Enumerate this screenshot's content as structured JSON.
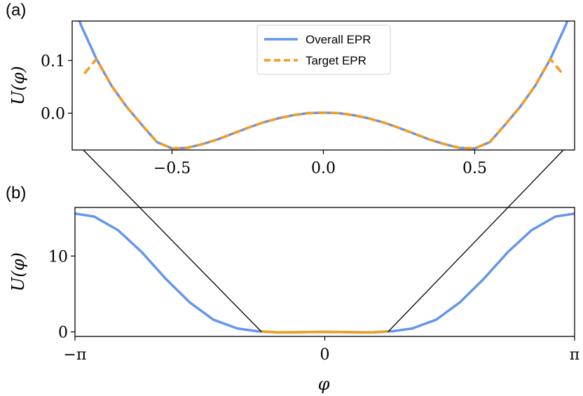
{
  "chart_data": [
    {
      "panel": "(a)",
      "type": "line",
      "ylabel": "U(φ)",
      "xlim": [
        -0.83,
        0.83
      ],
      "ylim": [
        -0.07,
        0.175
      ],
      "x_ticks": [
        -0.5,
        0.0,
        0.5
      ],
      "x_tick_labels": [
        "−0.5",
        "0.0",
        "0.5"
      ],
      "y_ticks": [
        0.0,
        0.1
      ],
      "y_tick_labels": [
        "0.0",
        "0.1"
      ],
      "legend": {
        "position": "top-center",
        "entries": [
          "Overall EPR",
          "Target EPR"
        ]
      },
      "series": [
        {
          "name": "Overall EPR",
          "color": "#6495ED",
          "style": "solid",
          "x": [
            -0.83,
            -0.8,
            -0.75,
            -0.7,
            -0.65,
            -0.6,
            -0.55,
            -0.5,
            -0.45,
            -0.4,
            -0.35,
            -0.3,
            -0.25,
            -0.2,
            -0.15,
            -0.1,
            -0.05,
            0.0,
            0.05,
            0.1,
            0.15,
            0.2,
            0.25,
            0.3,
            0.35,
            0.4,
            0.45,
            0.5,
            0.55,
            0.6,
            0.65,
            0.7,
            0.75,
            0.8,
            0.83
          ],
          "y": [
            0.211,
            0.166,
            0.103,
            0.052,
            0.012,
            -0.022,
            -0.055,
            -0.067,
            -0.066,
            -0.059,
            -0.05,
            -0.039,
            -0.028,
            -0.018,
            -0.01,
            -0.004,
            0.0,
            0.001,
            0.0,
            -0.004,
            -0.01,
            -0.018,
            -0.028,
            -0.039,
            -0.05,
            -0.059,
            -0.066,
            -0.067,
            -0.055,
            -0.022,
            0.012,
            0.052,
            0.103,
            0.166,
            0.211
          ]
        },
        {
          "name": "Target EPR",
          "color": "#F39C1E",
          "style": "dashed",
          "x": [
            -0.79,
            -0.75,
            -0.7,
            -0.65,
            -0.6,
            -0.55,
            -0.5,
            -0.45,
            -0.4,
            -0.35,
            -0.3,
            -0.25,
            -0.2,
            -0.15,
            -0.1,
            -0.05,
            0.0,
            0.05,
            0.1,
            0.15,
            0.2,
            0.25,
            0.3,
            0.35,
            0.4,
            0.45,
            0.5,
            0.55,
            0.6,
            0.65,
            0.7,
            0.75,
            0.79
          ],
          "y": [
            0.075,
            0.103,
            0.052,
            0.012,
            -0.022,
            -0.055,
            -0.067,
            -0.066,
            -0.059,
            -0.05,
            -0.039,
            -0.028,
            -0.018,
            -0.01,
            -0.004,
            0.0,
            0.001,
            0.0,
            -0.004,
            -0.01,
            -0.018,
            -0.028,
            -0.039,
            -0.05,
            -0.059,
            -0.066,
            -0.067,
            -0.055,
            -0.022,
            0.012,
            0.052,
            0.103,
            0.075
          ]
        }
      ]
    },
    {
      "panel": "(b)",
      "type": "line",
      "xlabel": "φ",
      "ylabel": "U(φ)",
      "xlim": [
        -3.1416,
        3.1416
      ],
      "ylim": [
        -0.6,
        16.4
      ],
      "x_ticks": [
        -3.1416,
        0,
        3.1416
      ],
      "x_tick_labels": [
        "−π",
        "0",
        "π"
      ],
      "y_ticks": [
        0,
        10
      ],
      "y_tick_labels": [
        "0",
        "10"
      ],
      "series": [
        {
          "name": "Overall EPR",
          "color": "#6495ED",
          "style": "solid",
          "x": [
            -3.1416,
            -2.9,
            -2.6,
            -2.3,
            -2.0,
            -1.7,
            -1.4,
            -1.1,
            -0.85,
            -0.6,
            -0.3,
            0.0,
            0.3,
            0.6,
            0.85,
            1.1,
            1.4,
            1.7,
            2.0,
            2.3,
            2.6,
            2.9,
            3.1416
          ],
          "y": [
            15.6,
            15.2,
            13.4,
            10.5,
            7.0,
            3.9,
            1.6,
            0.45,
            0.08,
            -0.06,
            -0.04,
            0.0,
            -0.04,
            -0.06,
            0.08,
            0.45,
            1.6,
            3.9,
            7.0,
            10.5,
            13.4,
            15.2,
            15.6
          ]
        },
        {
          "name": "Target EPR",
          "color": "#F39C1E",
          "style": "solid",
          "x": [
            -0.79,
            -0.6,
            -0.4,
            -0.2,
            0.0,
            0.2,
            0.4,
            0.6,
            0.79
          ],
          "y": [
            0.07,
            -0.06,
            -0.06,
            -0.02,
            0.0,
            -0.02,
            -0.06,
            -0.06,
            0.07
          ]
        }
      ]
    }
  ]
}
